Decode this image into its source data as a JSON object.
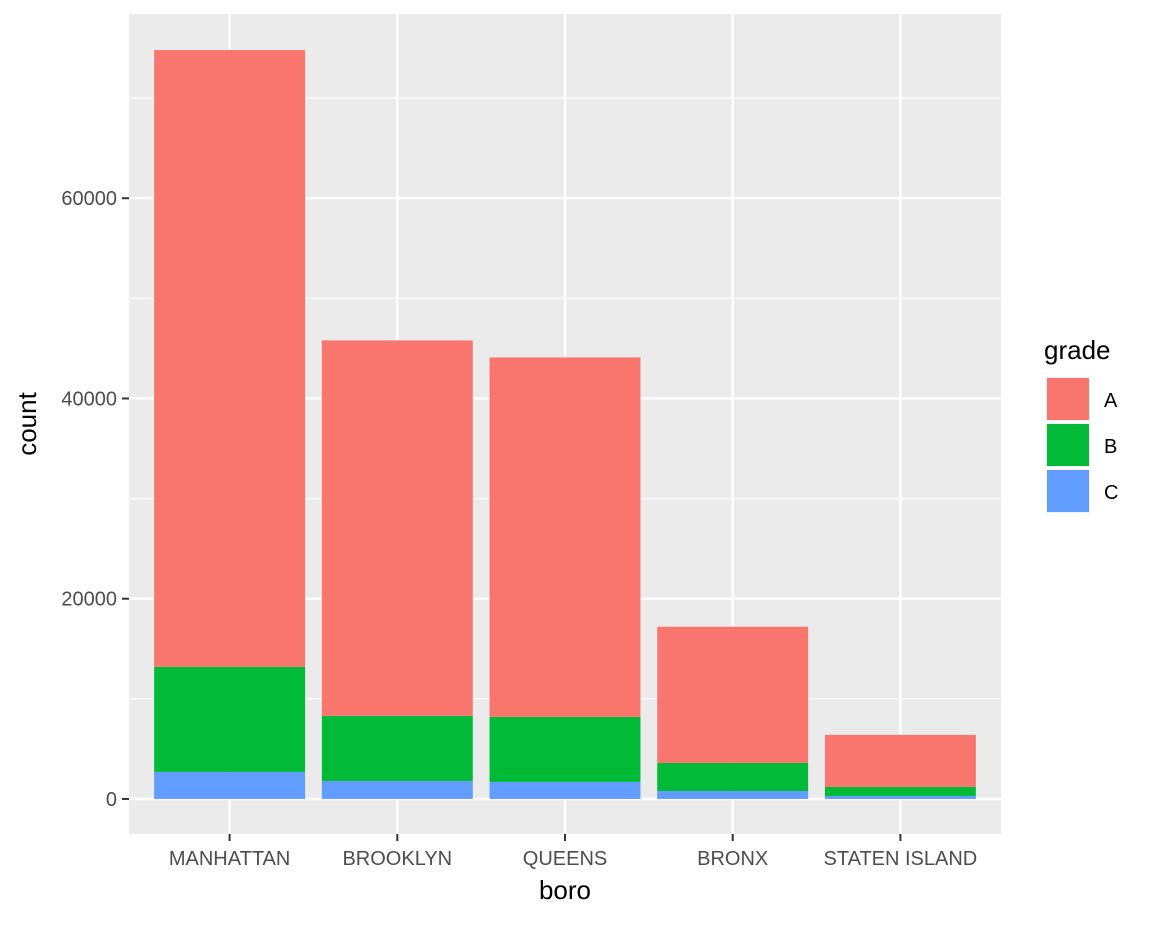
{
  "chart_data": {
    "type": "bar",
    "stacked": true,
    "categories": [
      "MANHATTAN",
      "BROOKLYN",
      "QUEENS",
      "BRONX",
      "STATEN ISLAND"
    ],
    "series": [
      {
        "name": "C",
        "color": "#619CFF",
        "values": [
          2700,
          1800,
          1700,
          800,
          300
        ]
      },
      {
        "name": "B",
        "color": "#00BA38",
        "values": [
          10500,
          6500,
          6500,
          2800,
          900
        ]
      },
      {
        "name": "A",
        "color": "#F8766D",
        "values": [
          61600,
          37500,
          35900,
          13600,
          5200
        ]
      }
    ],
    "xlabel": "boro",
    "ylabel": "count",
    "ylim": [
      -3500,
      78400
    ],
    "yticks": [
      0,
      20000,
      40000,
      60000
    ],
    "ytick_labels": [
      "0",
      "20000",
      "40000",
      "60000"
    ],
    "grid": true,
    "legend": {
      "title": "grade",
      "position": "right",
      "entries": [
        {
          "label": "A",
          "color": "#F8766D"
        },
        {
          "label": "B",
          "color": "#00BA38"
        },
        {
          "label": "C",
          "color": "#619CFF"
        }
      ]
    },
    "panel_background": "#EBEBEB",
    "grid_color": "#FFFFFF"
  }
}
